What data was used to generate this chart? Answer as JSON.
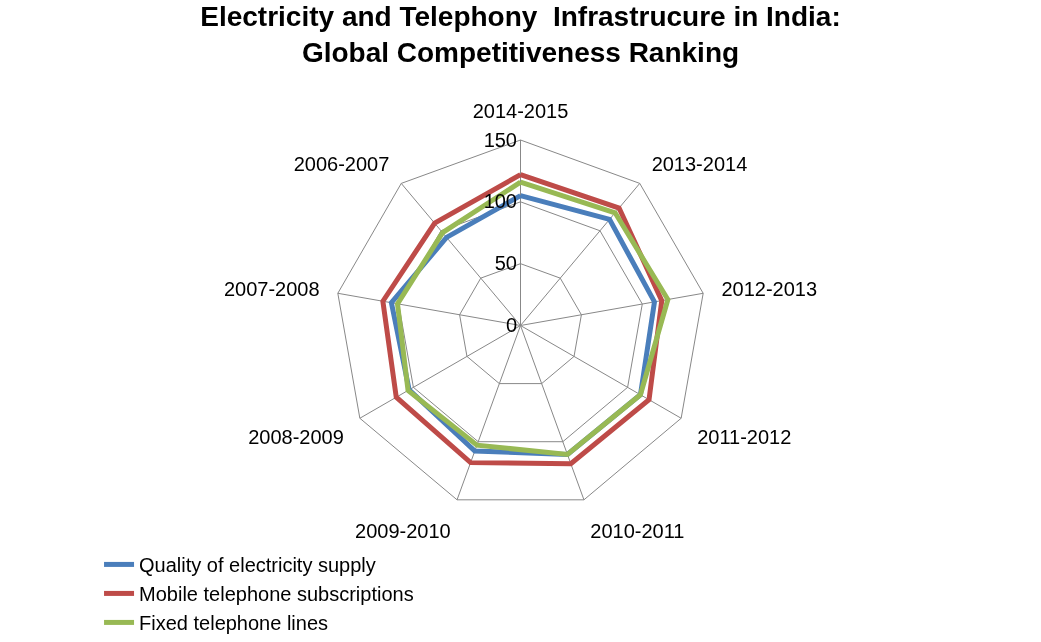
{
  "chart_data": {
    "type": "radar",
    "title": "Electricity and Telephony  Infrastrucure in India:\nGlobal Competitiveness Ranking",
    "categories": [
      "2014-2015",
      "2013-2014",
      "2012-2013",
      "2011-2012",
      "2010-2011",
      "2009-2010",
      "2008-2009",
      "2007-2008",
      "2006-2007"
    ],
    "series": [
      {
        "name": "Quality of electricity supply",
        "color": "#4a7ebb",
        "values": [
          105,
          112,
          110,
          112,
          111,
          108,
          104,
          106,
          93
        ]
      },
      {
        "name": "Mobile telephone subscriptions",
        "color": "#be4b48",
        "values": [
          122,
          124,
          116,
          120,
          119,
          118,
          116,
          113,
          108
        ]
      },
      {
        "name": "Fixed telephone lines",
        "color": "#98b954",
        "values": [
          116,
          119,
          121,
          112,
          111,
          103,
          105,
          101,
          98
        ]
      }
    ],
    "ylim": [
      0,
      150
    ],
    "yticks": [
      0,
      50,
      100,
      150
    ],
    "grid": true,
    "legend": "bottom",
    "marker": "none",
    "line_style": "solid"
  }
}
